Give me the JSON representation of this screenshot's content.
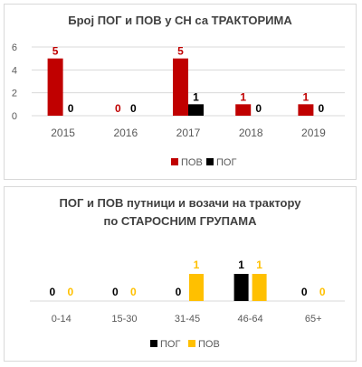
{
  "chart_data": [
    {
      "type": "bar",
      "title": "Број ПОГ и ПОВ у СН са ТРАКТОРИМА",
      "categories": [
        "2015",
        "2016",
        "2017",
        "2018",
        "2019"
      ],
      "series": [
        {
          "name": "ПОВ",
          "values": [
            5,
            0,
            5,
            1,
            1
          ],
          "color": "#c00000"
        },
        {
          "name": "ПОГ",
          "values": [
            0,
            0,
            1,
            0,
            0
          ],
          "color": "#000000"
        }
      ],
      "yticks": [
        "0",
        "2",
        "4",
        "6"
      ],
      "ylim": [
        0,
        6
      ],
      "grid": true,
      "legend": "bottom"
    },
    {
      "type": "bar",
      "title_lines": [
        "ПОГ  и ПОВ путници и возачи на трактору",
        "по СТАРОСНИМ ГРУПАМА"
      ],
      "categories": [
        "0-14",
        "15-30",
        "31-45",
        "46-64",
        "65+"
      ],
      "series": [
        {
          "name": "ПОГ",
          "values": [
            0,
            0,
            0,
            1,
            0
          ],
          "color": "#000000"
        },
        {
          "name": "ПОВ",
          "values": [
            0,
            0,
            1,
            1,
            0
          ],
          "color": "#ffc000"
        }
      ],
      "ylim": [
        0,
        1
      ],
      "grid": false,
      "legend": "bottom"
    }
  ]
}
